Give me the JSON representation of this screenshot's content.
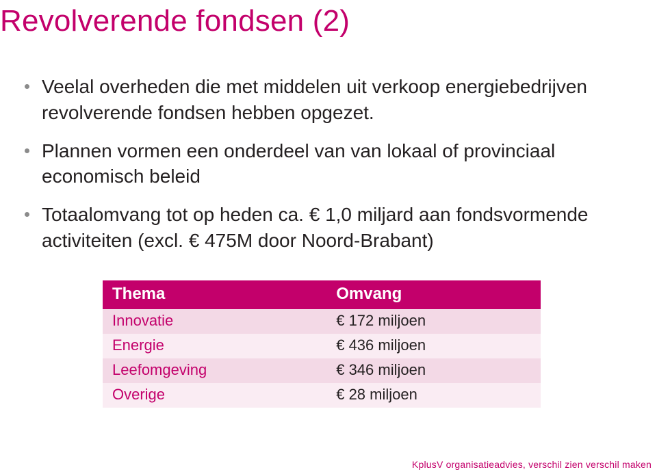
{
  "colors": {
    "magenta": "#c3006b",
    "text": "#231f20",
    "bullet_dot": "#8b8b8b",
    "table_header_bg": "#c3006b",
    "table_header_fg": "#ffffff",
    "row_odd_bg": "#f3d9e6",
    "row_even_bg": "#faecf3",
    "background": "#ffffff"
  },
  "typography": {
    "title_fontsize": 44,
    "body_fontsize": 28,
    "table_header_fontsize": 24,
    "table_cell_fontsize": 22,
    "footer_fontsize": 14,
    "font_family": "Arial"
  },
  "title": "Revolverende fondsen (2)",
  "bullets": [
    "Veelal overheden die met middelen uit verkoop energiebedrijven revolverende fondsen hebben opgezet.",
    " Plannen vormen een onderdeel van van lokaal of provinciaal economisch beleid",
    "Totaalomvang tot op heden ca. € 1,0 miljard aan fondsvormende activiteiten (excl. € 475M door Noord-Brabant)"
  ],
  "table": {
    "columns": [
      "Thema",
      "Omvang"
    ],
    "rows": [
      [
        "Innovatie",
        "€ 172 miljoen"
      ],
      [
        "Energie",
        "€ 436 miljoen"
      ],
      [
        "Leefomgeving",
        "€ 346 miljoen"
      ],
      [
        "Overige",
        "€ 28 miljoen"
      ]
    ],
    "column_widths_pct": [
      50,
      50
    ],
    "label_color": "#c3006b"
  },
  "footer": "KplusV organisatieadvies, verschil zien verschil maken"
}
